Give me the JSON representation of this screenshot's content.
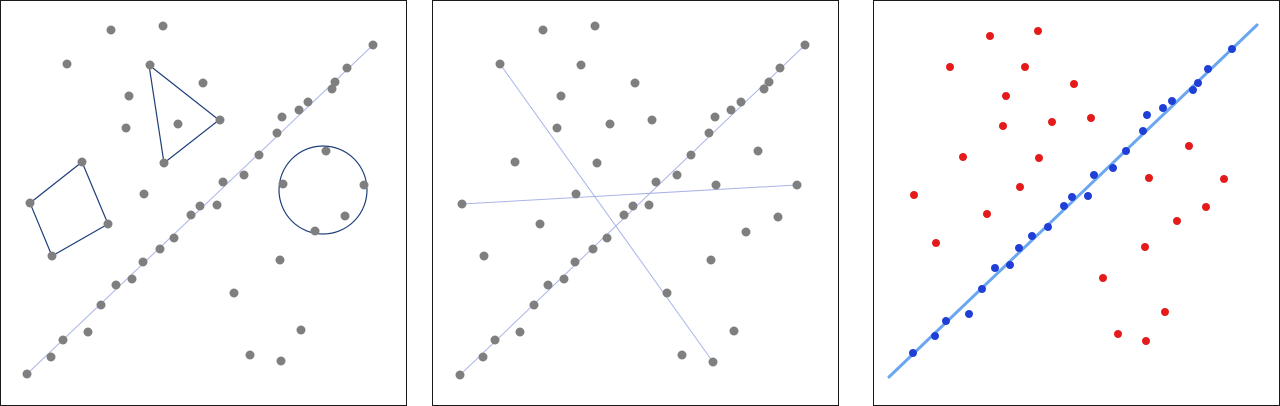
{
  "colors": {
    "gray_point": "#7f7f7f",
    "outline": "#1f3f7a",
    "fit_line_thin": "#a9b4e8",
    "inlier": "#1f3fd6",
    "outlier": "#e51a1a",
    "fit_line_thick": "#6aa7f0"
  },
  "panels": [
    {
      "id": "panel-1",
      "description_shapes": [
        "line",
        "triangle",
        "quadrilateral",
        "circle"
      ],
      "line": [
        [
          26,
          373
        ],
        [
          372,
          44
        ]
      ],
      "triangle": [
        [
          148,
          64
        ],
        [
          218,
          119
        ],
        [
          163,
          162
        ]
      ],
      "quad": [
        [
          29,
          202
        ],
        [
          81,
          161
        ],
        [
          107,
          223
        ],
        [
          51,
          255
        ]
      ],
      "circle": {
        "cx": 322,
        "cy": 189,
        "r": 44
      },
      "points": [
        [
          26,
          373
        ],
        [
          50,
          356
        ],
        [
          62,
          339
        ],
        [
          87,
          331
        ],
        [
          100,
          304
        ],
        [
          115,
          284
        ],
        [
          131,
          278
        ],
        [
          142,
          261
        ],
        [
          159,
          248
        ],
        [
          173,
          237
        ],
        [
          190,
          214
        ],
        [
          199,
          205
        ],
        [
          216,
          204
        ],
        [
          222,
          181
        ],
        [
          243,
          174
        ],
        [
          258,
          154
        ],
        [
          276,
          132
        ],
        [
          281,
          116
        ],
        [
          298,
          109
        ],
        [
          307,
          101
        ],
        [
          331,
          88
        ],
        [
          334,
          81
        ],
        [
          346,
          67
        ],
        [
          372,
          44
        ],
        [
          110,
          29
        ],
        [
          162,
          25
        ],
        [
          66,
          63
        ],
        [
          149,
          64
        ],
        [
          202,
          82
        ],
        [
          128,
          95
        ],
        [
          125,
          127
        ],
        [
          177,
          123
        ],
        [
          219,
          119
        ],
        [
          163,
          162
        ],
        [
          143,
          193
        ],
        [
          29,
          202
        ],
        [
          81,
          161
        ],
        [
          107,
          223
        ],
        [
          51,
          255
        ],
        [
          325,
          150
        ],
        [
          282,
          183
        ],
        [
          363,
          184
        ],
        [
          344,
          215
        ],
        [
          314,
          230
        ],
        [
          279,
          259
        ],
        [
          233,
          292
        ],
        [
          300,
          329
        ],
        [
          249,
          354
        ],
        [
          280,
          360
        ]
      ]
    },
    {
      "id": "panel-2",
      "lines": [
        [
          [
            27,
            374
          ],
          [
            372,
            44
          ]
        ],
        [
          [
            67,
            63
          ],
          [
            280,
            361
          ]
        ],
        [
          [
            29,
            203
          ],
          [
            364,
            184
          ]
        ]
      ],
      "points": [
        [
          27,
          374
        ],
        [
          50,
          356
        ],
        [
          62,
          339
        ],
        [
          87,
          331
        ],
        [
          101,
          304
        ],
        [
          115,
          284
        ],
        [
          131,
          278
        ],
        [
          142,
          261
        ],
        [
          160,
          248
        ],
        [
          174,
          237
        ],
        [
          191,
          214
        ],
        [
          200,
          205
        ],
        [
          216,
          204
        ],
        [
          223,
          181
        ],
        [
          244,
          174
        ],
        [
          258,
          154
        ],
        [
          276,
          132
        ],
        [
          282,
          116
        ],
        [
          298,
          109
        ],
        [
          308,
          101
        ],
        [
          331,
          88
        ],
        [
          336,
          81
        ],
        [
          347,
          67
        ],
        [
          372,
          44
        ],
        [
          110,
          29
        ],
        [
          162,
          25
        ],
        [
          67,
          63
        ],
        [
          148,
          64
        ],
        [
          202,
          82
        ],
        [
          128,
          95
        ],
        [
          124,
          127
        ],
        [
          177,
          123
        ],
        [
          219,
          119
        ],
        [
          164,
          162
        ],
        [
          143,
          193
        ],
        [
          82,
          161
        ],
        [
          107,
          223
        ],
        [
          51,
          255
        ],
        [
          29,
          203
        ],
        [
          325,
          150
        ],
        [
          283,
          184
        ],
        [
          364,
          184
        ],
        [
          345,
          216
        ],
        [
          313,
          231
        ],
        [
          278,
          259
        ],
        [
          234,
          292
        ],
        [
          301,
          330
        ],
        [
          249,
          354
        ],
        [
          280,
          361
        ]
      ]
    },
    {
      "id": "panel-3",
      "fit_line": [
        [
          15,
          376
        ],
        [
          383,
          24
        ]
      ],
      "inliers": [
        [
          39,
          352
        ],
        [
          61,
          335
        ],
        [
          72,
          320
        ],
        [
          95,
          313
        ],
        [
          108,
          288
        ],
        [
          121,
          267
        ],
        [
          136,
          264
        ],
        [
          145,
          247
        ],
        [
          158,
          235
        ],
        [
          174,
          226
        ],
        [
          190,
          205
        ],
        [
          198,
          196
        ],
        [
          214,
          195
        ],
        [
          220,
          174
        ],
        [
          239,
          167
        ],
        [
          252,
          150
        ],
        [
          269,
          130
        ],
        [
          273,
          114
        ],
        [
          289,
          107
        ],
        [
          298,
          100
        ],
        [
          319,
          89
        ],
        [
          324,
          82
        ],
        [
          334,
          68
        ],
        [
          358,
          48
        ]
      ],
      "outliers": [
        [
          116,
          35
        ],
        [
          164,
          30
        ],
        [
          76,
          66
        ],
        [
          151,
          66
        ],
        [
          200,
          83
        ],
        [
          132,
          95
        ],
        [
          129,
          125
        ],
        [
          178,
          121
        ],
        [
          217,
          117
        ],
        [
          165,
          157
        ],
        [
          89,
          156
        ],
        [
          40,
          194
        ],
        [
          146,
          186
        ],
        [
          113,
          213
        ],
        [
          275,
          177
        ],
        [
          315,
          145
        ],
        [
          350,
          178
        ],
        [
          303,
          220
        ],
        [
          332,
          206
        ],
        [
          62,
          242
        ],
        [
          271,
          246
        ],
        [
          229,
          277
        ],
        [
          291,
          311
        ],
        [
          244,
          333
        ],
        [
          272,
          340
        ]
      ]
    }
  ]
}
